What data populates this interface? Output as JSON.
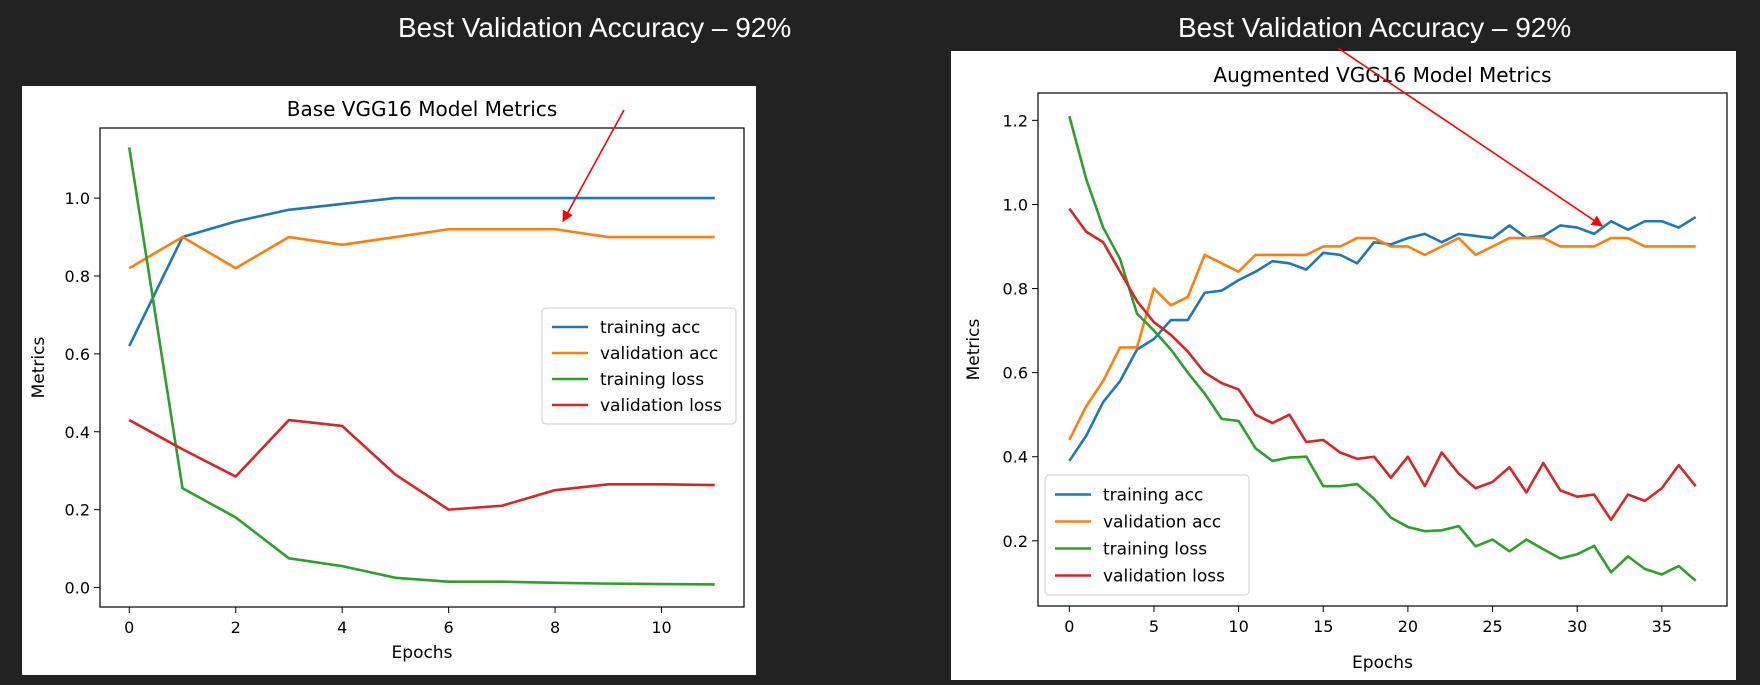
{
  "captions": {
    "left": "Best Validation Accuracy – 92%",
    "right": "Best Validation Accuracy – 92%"
  },
  "colors": {
    "background": "#222222",
    "panel": "#ffffff",
    "annotation_arrow": "#ff0000"
  },
  "chart_data": [
    {
      "type": "line",
      "title": "Base VGG16 Model Metrics",
      "xlabel": "Epochs",
      "ylabel": "Metrics",
      "xlim": [
        -0.55,
        11.55
      ],
      "ylim": [
        -0.05,
        1.18
      ],
      "xticks": [
        0,
        2,
        4,
        6,
        8,
        10
      ],
      "yticks": [
        0.0,
        0.2,
        0.4,
        0.6,
        0.8,
        1.0
      ],
      "ytick_decimals": 1,
      "legend": "center-right",
      "x": [
        0,
        1,
        2,
        3,
        4,
        5,
        6,
        7,
        8,
        9,
        10,
        11
      ],
      "series": [
        {
          "name": "training acc",
          "color": "#1f77b4",
          "values": [
            0.62,
            0.9,
            0.94,
            0.97,
            0.985,
            1.0,
            1.0,
            1.0,
            1.0,
            1.0,
            1.0,
            1.0
          ]
        },
        {
          "name": "validation acc",
          "color": "#ff7f0e",
          "values": [
            0.82,
            0.9,
            0.82,
            0.9,
            0.88,
            0.9,
            0.92,
            0.92,
            0.92,
            0.9,
            0.9,
            0.9
          ]
        },
        {
          "name": "training loss",
          "color": "#2ca02c",
          "values": [
            1.13,
            0.255,
            0.18,
            0.075,
            0.055,
            0.025,
            0.015,
            0.015,
            0.012,
            0.01,
            0.009,
            0.008
          ]
        },
        {
          "name": "validation loss",
          "color": "#d62728",
          "values": [
            0.43,
            0.355,
            0.285,
            0.43,
            0.415,
            0.29,
            0.2,
            0.21,
            0.25,
            0.265,
            0.265,
            0.263
          ]
        }
      ],
      "annotation": {
        "type": "arrow",
        "points_to": {
          "x": 8,
          "y": 0.92
        }
      }
    },
    {
      "type": "line",
      "title": "Augmented VGG16 Model Metrics",
      "xlabel": "Epochs",
      "ylabel": "Metrics",
      "xlim": [
        -1.85,
        38.85
      ],
      "ylim": [
        0.045,
        1.265
      ],
      "xticks": [
        0,
        5,
        10,
        15,
        20,
        25,
        30,
        35
      ],
      "yticks": [
        0.2,
        0.4,
        0.6,
        0.8,
        1.0,
        1.2
      ],
      "ytick_decimals": 1,
      "legend": "lower-left",
      "x": [
        0,
        1,
        2,
        3,
        4,
        5,
        6,
        7,
        8,
        9,
        10,
        11,
        12,
        13,
        14,
        15,
        16,
        17,
        18,
        19,
        20,
        21,
        22,
        23,
        24,
        25,
        26,
        27,
        28,
        29,
        30,
        31,
        32,
        33,
        34,
        35,
        36,
        37
      ],
      "series": [
        {
          "name": "training acc",
          "color": "#1f77b4",
          "values": [
            0.39,
            0.45,
            0.53,
            0.58,
            0.655,
            0.68,
            0.725,
            0.725,
            0.79,
            0.795,
            0.82,
            0.84,
            0.865,
            0.86,
            0.845,
            0.885,
            0.88,
            0.86,
            0.91,
            0.905,
            0.92,
            0.93,
            0.91,
            0.93,
            0.925,
            0.92,
            0.95,
            0.92,
            0.925,
            0.95,
            0.945,
            0.93,
            0.96,
            0.94,
            0.96,
            0.96,
            0.945,
            0.97
          ]
        },
        {
          "name": "validation acc",
          "color": "#ff7f0e",
          "values": [
            0.44,
            0.52,
            0.58,
            0.66,
            0.66,
            0.8,
            0.76,
            0.78,
            0.88,
            0.86,
            0.84,
            0.88,
            0.88,
            0.88,
            0.88,
            0.9,
            0.9,
            0.92,
            0.92,
            0.9,
            0.9,
            0.88,
            0.9,
            0.92,
            0.88,
            0.9,
            0.92,
            0.92,
            0.92,
            0.9,
            0.9,
            0.9,
            0.92,
            0.92,
            0.9,
            0.9,
            0.9,
            0.9
          ]
        },
        {
          "name": "training loss",
          "color": "#2ca02c",
          "values": [
            1.21,
            1.06,
            0.945,
            0.87,
            0.74,
            0.7,
            0.655,
            0.6,
            0.55,
            0.49,
            0.485,
            0.42,
            0.39,
            0.398,
            0.4,
            0.33,
            0.33,
            0.335,
            0.3,
            0.255,
            0.233,
            0.223,
            0.225,
            0.235,
            0.187,
            0.203,
            0.175,
            0.203,
            0.18,
            0.158,
            0.168,
            0.188,
            0.125,
            0.163,
            0.133,
            0.12,
            0.14,
            0.105
          ]
        },
        {
          "name": "validation loss",
          "color": "#d62728",
          "values": [
            0.99,
            0.935,
            0.91,
            0.84,
            0.77,
            0.72,
            0.69,
            0.65,
            0.6,
            0.575,
            0.56,
            0.5,
            0.48,
            0.5,
            0.435,
            0.44,
            0.41,
            0.395,
            0.4,
            0.35,
            0.4,
            0.33,
            0.41,
            0.36,
            0.325,
            0.34,
            0.375,
            0.315,
            0.385,
            0.32,
            0.305,
            0.31,
            0.25,
            0.31,
            0.295,
            0.325,
            0.38,
            0.33
          ]
        }
      ],
      "annotation": {
        "type": "arrow",
        "points_to": {
          "x": 31,
          "y": 0.93
        }
      }
    }
  ]
}
